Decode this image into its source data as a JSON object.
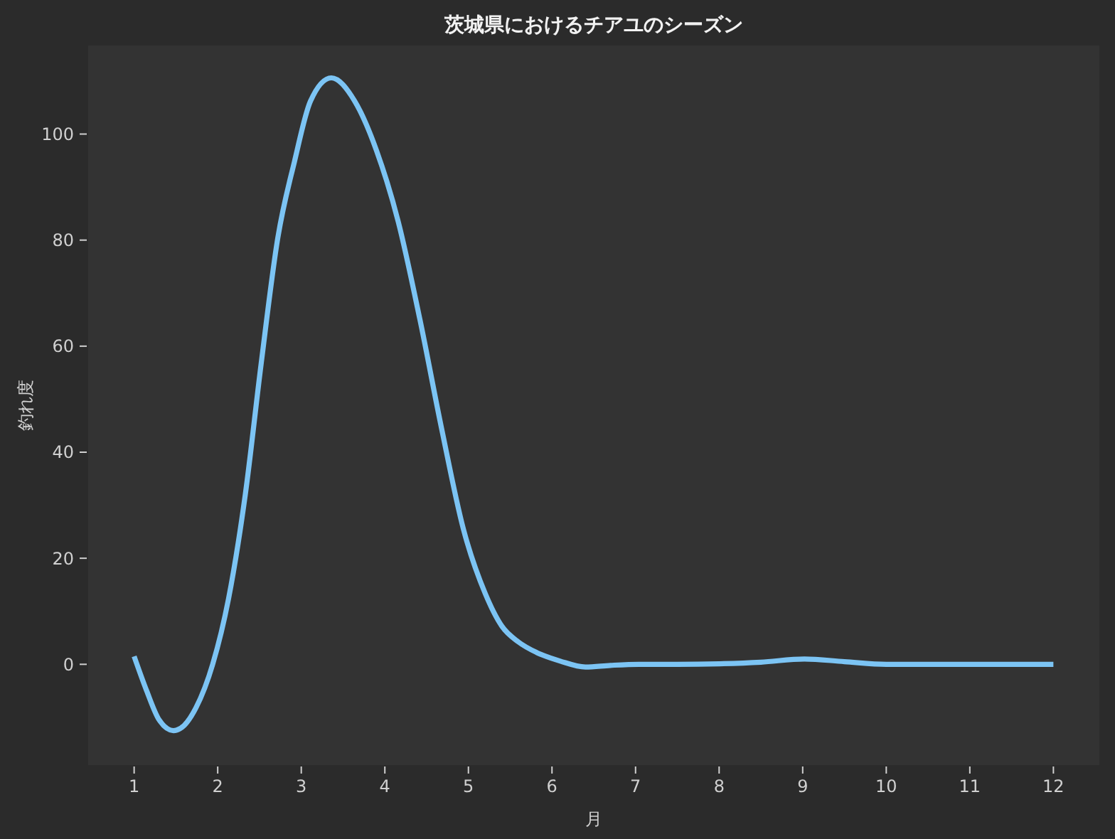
{
  "chart_data": {
    "type": "line",
    "title": "茨城県におけるチアユのシーズン",
    "xlabel": "月",
    "ylabel": "釣れ度",
    "x": [
      1.0,
      1.15,
      1.3,
      1.47,
      1.6,
      1.74,
      1.94,
      2.13,
      2.33,
      2.52,
      2.72,
      2.92,
      3.11,
      3.36,
      3.64,
      3.9,
      4.16,
      4.42,
      4.68,
      4.94,
      5.2,
      5.4,
      5.6,
      5.82,
      6.1,
      6.4,
      6.7,
      7.04,
      7.5,
      8.0,
      8.5,
      9.02,
      9.5,
      10.0,
      11.0,
      12.0
    ],
    "series": [
      {
        "color": "#7cc4f4",
        "values": [
          1.5,
          -5,
          -10.5,
          -12.5,
          -11.5,
          -8.2,
          0,
          12.4,
          32,
          56.7,
          80.5,
          94.9,
          106.2,
          110.6,
          106.2,
          96.9,
          83.5,
          65,
          44.4,
          25.5,
          13.4,
          7.2,
          4.2,
          2.2,
          0.6,
          -0.5,
          -0.2,
          0,
          0,
          0.1,
          0.4,
          1,
          0.5,
          0,
          0,
          0
        ]
      }
    ],
    "xlim": [
      0.45,
      12.55
    ],
    "ylim": [
      -19,
      116.7
    ],
    "xticks": [
      1,
      2,
      3,
      4,
      5,
      6,
      7,
      8,
      9,
      10,
      11,
      12
    ],
    "yticks": [
      0,
      20,
      40,
      60,
      80,
      100
    ]
  }
}
